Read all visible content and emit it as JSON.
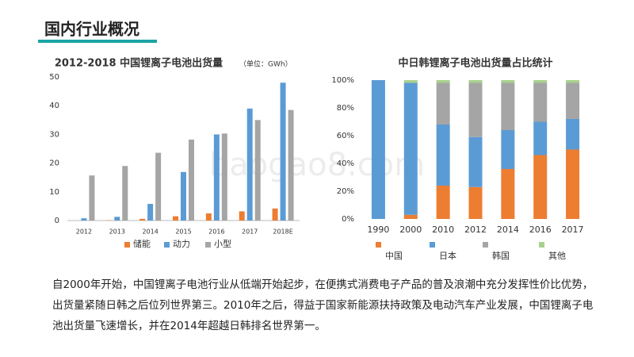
{
  "header": {
    "title": "国内行业概况"
  },
  "watermark": "baogao8.com",
  "chart_data": [
    {
      "type": "bar",
      "title": "2012-2018 中国锂离子电池出货量",
      "subtitle": "（单位：GWh）",
      "categories": [
        "2012",
        "2013",
        "2014",
        "2015",
        "2016",
        "2017",
        "2018E"
      ],
      "series": [
        {
          "name": "储能",
          "color": "#ed7d31",
          "values": [
            0,
            0.1,
            0.6,
            1.5,
            2.5,
            3.2,
            4.2
          ]
        },
        {
          "name": "动力",
          "color": "#5b9bd5",
          "values": [
            0.8,
            1.3,
            5.8,
            16.9,
            30,
            39,
            48
          ]
        },
        {
          "name": "小型",
          "color": "#a5a5a5",
          "values": [
            15.7,
            19,
            23.6,
            28.2,
            30.3,
            35,
            38.5
          ]
        }
      ],
      "ylim": [
        0,
        50
      ],
      "yticks": [
        0,
        10,
        20,
        30,
        40,
        50
      ],
      "grid": false,
      "legend": "bottom"
    },
    {
      "type": "stacked_bar",
      "title": "中日韩锂离子电池出货量占比统计",
      "categories": [
        "1990",
        "2000",
        "2010",
        "2012",
        "2014",
        "2016",
        "2017"
      ],
      "series": [
        {
          "name": "中国",
          "color": "#ed7d31",
          "values": [
            0,
            3,
            24,
            23,
            36,
            46,
            50
          ]
        },
        {
          "name": "日本",
          "color": "#5b9bd5",
          "values": [
            100,
            95,
            44,
            36,
            28,
            24,
            22
          ]
        },
        {
          "name": "韩国",
          "color": "#a5a5a5",
          "values": [
            0,
            0,
            30,
            39,
            34,
            28,
            26
          ]
        },
        {
          "name": "其他",
          "color": "#a9d18e",
          "values": [
            0,
            2,
            2,
            2,
            2,
            2,
            2
          ]
        }
      ],
      "ylim": [
        0,
        100
      ],
      "yticks": [
        {
          "value": 0,
          "label": "0%"
        },
        {
          "value": 20,
          "label": "20%"
        },
        {
          "value": 40,
          "label": "40%"
        },
        {
          "value": 60,
          "label": "60%"
        },
        {
          "value": 80,
          "label": "80%"
        },
        {
          "value": 100,
          "label": "100%"
        }
      ],
      "grid": false,
      "legend": "bottom"
    }
  ],
  "paragraph": "自2000年开始，中国锂离子电池行业从低端开始起步，在便携式消费电子产品的普及浪潮中充分发挥性价比优势，出货量紧随日韩之后位列世界第三。2010年之后，得益于国家新能源扶持政策及电动汽车产业发展，中国锂离子电池出货量飞速增长，并在2014年超越日韩排名世界第一。"
}
